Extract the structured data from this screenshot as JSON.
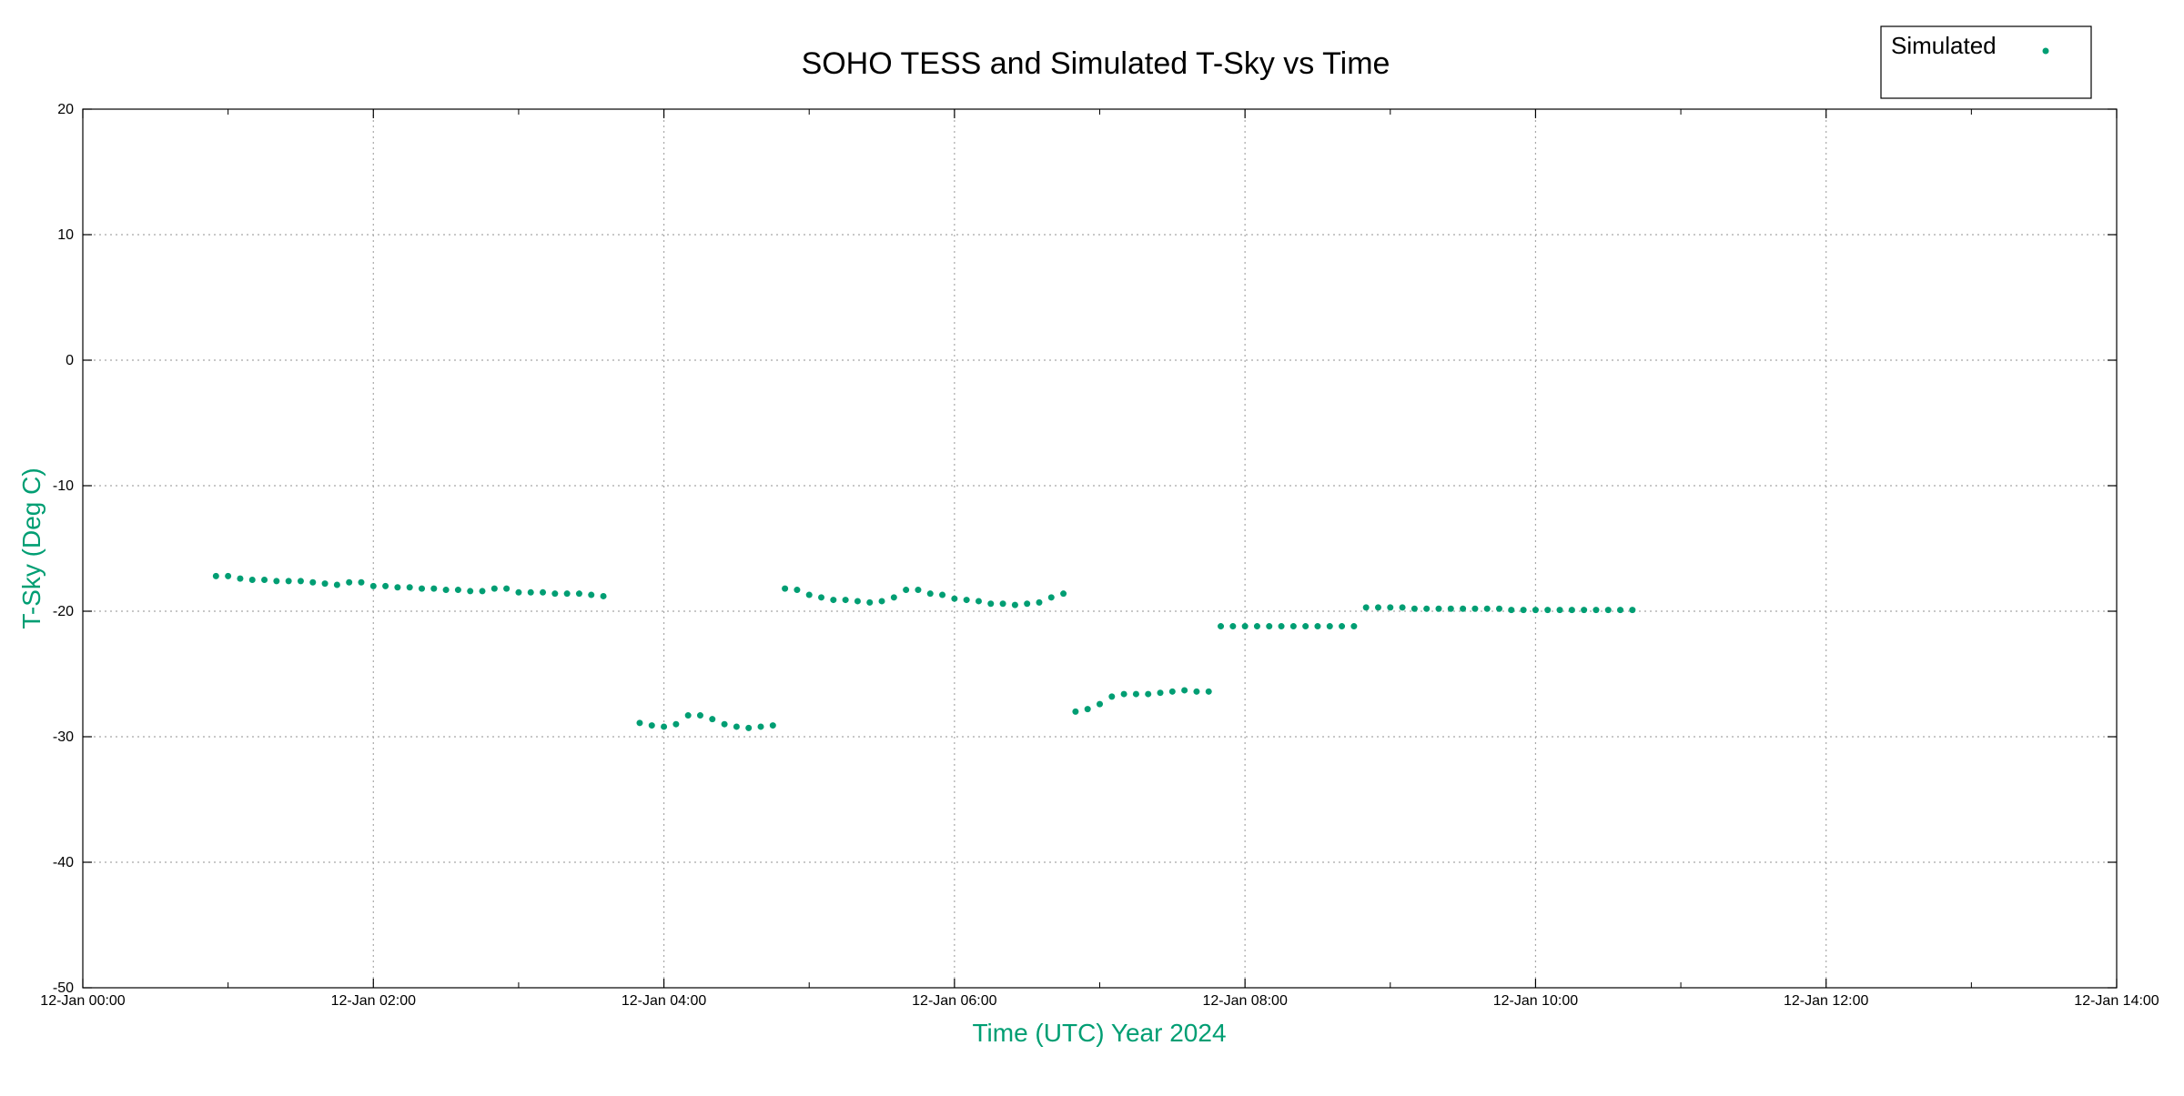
{
  "chart_data": {
    "type": "scatter",
    "title": "SOHO TESS and Simulated T-Sky vs Time",
    "xlabel": "Time (UTC)  Year 2024",
    "ylabel": "T-Sky (Deg C)",
    "xlim": [
      "12-Jan 00:00",
      "12-Jan 14:00"
    ],
    "ylim": [
      -50,
      20
    ],
    "x_tick_labels": [
      "12-Jan 00:00",
      "12-Jan 02:00",
      "12-Jan 04:00",
      "12-Jan 06:00",
      "12-Jan 08:00",
      "12-Jan 10:00",
      "12-Jan 12:00",
      "12-Jan 14:00"
    ],
    "y_tick_labels": [
      "20",
      "10",
      "0",
      "-10",
      "-20",
      "-30",
      "-40",
      "-50"
    ],
    "grid": true,
    "legend_position": "top-right",
    "series": [
      {
        "name": "Simulated",
        "color": "#009e73",
        "marker": "dot",
        "points": [
          {
            "x": "12-Jan 00:55",
            "y": -17.2
          },
          {
            "x": "12-Jan 01:00",
            "y": -17.2
          },
          {
            "x": "12-Jan 01:05",
            "y": -17.4
          },
          {
            "x": "12-Jan 01:10",
            "y": -17.5
          },
          {
            "x": "12-Jan 01:15",
            "y": -17.5
          },
          {
            "x": "12-Jan 01:20",
            "y": -17.6
          },
          {
            "x": "12-Jan 01:25",
            "y": -17.6
          },
          {
            "x": "12-Jan 01:30",
            "y": -17.6
          },
          {
            "x": "12-Jan 01:35",
            "y": -17.7
          },
          {
            "x": "12-Jan 01:40",
            "y": -17.8
          },
          {
            "x": "12-Jan 01:45",
            "y": -17.9
          },
          {
            "x": "12-Jan 01:50",
            "y": -17.7
          },
          {
            "x": "12-Jan 01:55",
            "y": -17.7
          },
          {
            "x": "12-Jan 02:00",
            "y": -18.0
          },
          {
            "x": "12-Jan 02:05",
            "y": -18.0
          },
          {
            "x": "12-Jan 02:10",
            "y": -18.1
          },
          {
            "x": "12-Jan 02:15",
            "y": -18.1
          },
          {
            "x": "12-Jan 02:20",
            "y": -18.2
          },
          {
            "x": "12-Jan 02:25",
            "y": -18.2
          },
          {
            "x": "12-Jan 02:30",
            "y": -18.3
          },
          {
            "x": "12-Jan 02:35",
            "y": -18.3
          },
          {
            "x": "12-Jan 02:40",
            "y": -18.4
          },
          {
            "x": "12-Jan 02:45",
            "y": -18.4
          },
          {
            "x": "12-Jan 02:50",
            "y": -18.2
          },
          {
            "x": "12-Jan 02:55",
            "y": -18.2
          },
          {
            "x": "12-Jan 03:00",
            "y": -18.5
          },
          {
            "x": "12-Jan 03:05",
            "y": -18.5
          },
          {
            "x": "12-Jan 03:10",
            "y": -18.5
          },
          {
            "x": "12-Jan 03:15",
            "y": -18.6
          },
          {
            "x": "12-Jan 03:20",
            "y": -18.6
          },
          {
            "x": "12-Jan 03:25",
            "y": -18.6
          },
          {
            "x": "12-Jan 03:30",
            "y": -18.7
          },
          {
            "x": "12-Jan 03:35",
            "y": -18.8
          },
          {
            "x": "12-Jan 03:50",
            "y": -28.9
          },
          {
            "x": "12-Jan 03:55",
            "y": -29.1
          },
          {
            "x": "12-Jan 04:00",
            "y": -29.2
          },
          {
            "x": "12-Jan 04:05",
            "y": -29.0
          },
          {
            "x": "12-Jan 04:10",
            "y": -28.3
          },
          {
            "x": "12-Jan 04:15",
            "y": -28.3
          },
          {
            "x": "12-Jan 04:20",
            "y": -28.6
          },
          {
            "x": "12-Jan 04:25",
            "y": -29.0
          },
          {
            "x": "12-Jan 04:30",
            "y": -29.2
          },
          {
            "x": "12-Jan 04:35",
            "y": -29.3
          },
          {
            "x": "12-Jan 04:40",
            "y": -29.2
          },
          {
            "x": "12-Jan 04:45",
            "y": -29.1
          },
          {
            "x": "12-Jan 04:50",
            "y": -18.2
          },
          {
            "x": "12-Jan 04:55",
            "y": -18.3
          },
          {
            "x": "12-Jan 05:00",
            "y": -18.7
          },
          {
            "x": "12-Jan 05:05",
            "y": -18.9
          },
          {
            "x": "12-Jan 05:10",
            "y": -19.1
          },
          {
            "x": "12-Jan 05:15",
            "y": -19.1
          },
          {
            "x": "12-Jan 05:20",
            "y": -19.2
          },
          {
            "x": "12-Jan 05:25",
            "y": -19.3
          },
          {
            "x": "12-Jan 05:30",
            "y": -19.2
          },
          {
            "x": "12-Jan 05:35",
            "y": -18.9
          },
          {
            "x": "12-Jan 05:40",
            "y": -18.3
          },
          {
            "x": "12-Jan 05:45",
            "y": -18.3
          },
          {
            "x": "12-Jan 05:50",
            "y": -18.6
          },
          {
            "x": "12-Jan 05:55",
            "y": -18.7
          },
          {
            "x": "12-Jan 06:00",
            "y": -19.0
          },
          {
            "x": "12-Jan 06:05",
            "y": -19.1
          },
          {
            "x": "12-Jan 06:10",
            "y": -19.2
          },
          {
            "x": "12-Jan 06:15",
            "y": -19.4
          },
          {
            "x": "12-Jan 06:20",
            "y": -19.4
          },
          {
            "x": "12-Jan 06:25",
            "y": -19.5
          },
          {
            "x": "12-Jan 06:30",
            "y": -19.4
          },
          {
            "x": "12-Jan 06:35",
            "y": -19.3
          },
          {
            "x": "12-Jan 06:40",
            "y": -18.9
          },
          {
            "x": "12-Jan 06:45",
            "y": -18.6
          },
          {
            "x": "12-Jan 06:50",
            "y": -28.0
          },
          {
            "x": "12-Jan 06:55",
            "y": -27.8
          },
          {
            "x": "12-Jan 07:00",
            "y": -27.4
          },
          {
            "x": "12-Jan 07:05",
            "y": -26.8
          },
          {
            "x": "12-Jan 07:10",
            "y": -26.6
          },
          {
            "x": "12-Jan 07:15",
            "y": -26.6
          },
          {
            "x": "12-Jan 07:20",
            "y": -26.6
          },
          {
            "x": "12-Jan 07:25",
            "y": -26.5
          },
          {
            "x": "12-Jan 07:30",
            "y": -26.4
          },
          {
            "x": "12-Jan 07:35",
            "y": -26.3
          },
          {
            "x": "12-Jan 07:40",
            "y": -26.4
          },
          {
            "x": "12-Jan 07:45",
            "y": -26.4
          },
          {
            "x": "12-Jan 07:50",
            "y": -21.2
          },
          {
            "x": "12-Jan 07:55",
            "y": -21.2
          },
          {
            "x": "12-Jan 08:00",
            "y": -21.2
          },
          {
            "x": "12-Jan 08:05",
            "y": -21.2
          },
          {
            "x": "12-Jan 08:10",
            "y": -21.2
          },
          {
            "x": "12-Jan 08:15",
            "y": -21.2
          },
          {
            "x": "12-Jan 08:20",
            "y": -21.2
          },
          {
            "x": "12-Jan 08:25",
            "y": -21.2
          },
          {
            "x": "12-Jan 08:30",
            "y": -21.2
          },
          {
            "x": "12-Jan 08:35",
            "y": -21.2
          },
          {
            "x": "12-Jan 08:40",
            "y": -21.2
          },
          {
            "x": "12-Jan 08:45",
            "y": -21.2
          },
          {
            "x": "12-Jan 08:50",
            "y": -19.7
          },
          {
            "x": "12-Jan 08:55",
            "y": -19.7
          },
          {
            "x": "12-Jan 09:00",
            "y": -19.7
          },
          {
            "x": "12-Jan 09:05",
            "y": -19.7
          },
          {
            "x": "12-Jan 09:10",
            "y": -19.8
          },
          {
            "x": "12-Jan 09:15",
            "y": -19.8
          },
          {
            "x": "12-Jan 09:20",
            "y": -19.8
          },
          {
            "x": "12-Jan 09:25",
            "y": -19.8
          },
          {
            "x": "12-Jan 09:30",
            "y": -19.8
          },
          {
            "x": "12-Jan 09:35",
            "y": -19.8
          },
          {
            "x": "12-Jan 09:40",
            "y": -19.8
          },
          {
            "x": "12-Jan 09:45",
            "y": -19.8
          },
          {
            "x": "12-Jan 09:50",
            "y": -19.9
          },
          {
            "x": "12-Jan 09:55",
            "y": -19.9
          },
          {
            "x": "12-Jan 10:00",
            "y": -19.9
          },
          {
            "x": "12-Jan 10:05",
            "y": -19.9
          },
          {
            "x": "12-Jan 10:10",
            "y": -19.9
          },
          {
            "x": "12-Jan 10:15",
            "y": -19.9
          },
          {
            "x": "12-Jan 10:20",
            "y": -19.9
          },
          {
            "x": "12-Jan 10:25",
            "y": -19.9
          },
          {
            "x": "12-Jan 10:30",
            "y": -19.9
          },
          {
            "x": "12-Jan 10:35",
            "y": -19.9
          },
          {
            "x": "12-Jan 10:40",
            "y": -19.9
          }
        ]
      }
    ]
  },
  "legend": {
    "label": "Simulated"
  },
  "colors": {
    "series": "#009e73",
    "axis_label": "#009e73",
    "grid": "#a8a8a8"
  }
}
